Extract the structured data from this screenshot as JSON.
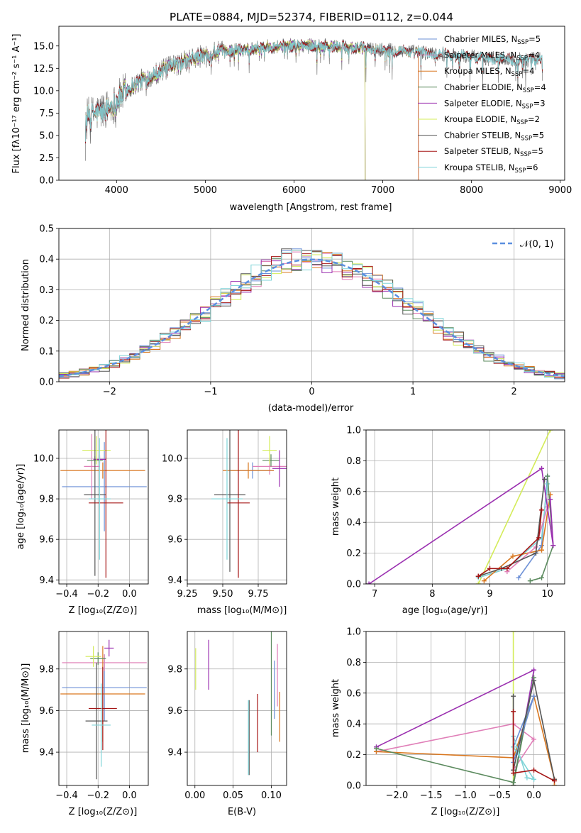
{
  "title": "PLATE=0884, MJD=52374, FIBERID=0112, z=0.044",
  "colors": {
    "Chabrier MILES": "#6b8fd6",
    "Salpeter MILES": "#e07fb8",
    "Kroupa MILES": "#d9771f",
    "Chabrier ELODIE": "#5b8a5e",
    "Salpeter ELODIE": "#9b30b0",
    "Kroupa ELODIE": "#d4ec5a",
    "Chabrier STELIB": "#555555",
    "Salpeter STELIB": "#a51515",
    "Kroupa STELIB": "#7fd4d8",
    "gauss": "#5b8fe0"
  },
  "chart_data": [
    {
      "id": "spectrum",
      "type": "line",
      "title": "PLATE=0884, MJD=52374, FIBERID=0112, z=0.044",
      "xlabel": "wavelength [Angstrom, rest frame]",
      "ylabel": "Flux [fλ10⁻¹⁷ erg cm⁻² s⁻¹ A⁻¹]",
      "xlim": [
        3350,
        9050
      ],
      "ylim": [
        0,
        17.2
      ],
      "xticks": [
        4000,
        5000,
        6000,
        7000,
        8000,
        9000
      ],
      "yticks": [
        0.0,
        2.5,
        5.0,
        7.5,
        10.0,
        12.5,
        15.0
      ],
      "grid": false,
      "legend_position": "top-right",
      "legend": [
        {
          "series": "Chabrier MILES",
          "text": "Chabrier MILES, N",
          "sub": "SSP",
          "suffix": "=5"
        },
        {
          "series": "Salpeter MILES",
          "text": "Salpeter MILES, N",
          "sub": "SSP",
          "suffix": "=4"
        },
        {
          "series": "Kroupa MILES",
          "text": "Kroupa MILES, N",
          "sub": "SSP",
          "suffix": "=4"
        },
        {
          "series": "Chabrier ELODIE",
          "text": "Chabrier ELODIE, N",
          "sub": "SSP",
          "suffix": "=4"
        },
        {
          "series": "Salpeter ELODIE",
          "text": "Salpeter ELODIE, N",
          "sub": "SSP",
          "suffix": "=3"
        },
        {
          "series": "Kroupa ELODIE",
          "text": "Kroupa ELODIE, N",
          "sub": "SSP",
          "suffix": "=2"
        },
        {
          "series": "Chabrier STELIB",
          "text": "Chabrier STELIB, N",
          "sub": "SSP",
          "suffix": "=5"
        },
        {
          "series": "Salpeter STELIB",
          "text": "Salpeter STELIB, N",
          "sub": "SSP",
          "suffix": "=5"
        },
        {
          "series": "Kroupa STELIB",
          "text": "Kroupa STELIB, N",
          "sub": "SSP",
          "suffix": "=6"
        }
      ],
      "continuum": {
        "x": [
          3650,
          3800,
          3950,
          4100,
          4300,
          4500,
          4700,
          4900,
          5100,
          5300,
          5500,
          5700,
          5900,
          6100,
          6300,
          6500,
          6700,
          6900,
          7100,
          7300,
          7500,
          7700,
          7900,
          8100,
          8300,
          8500,
          8700,
          8800
        ],
        "y": [
          7.0,
          7.6,
          8.3,
          10.0,
          11.3,
          12.2,
          13.0,
          13.7,
          14.2,
          14.5,
          14.7,
          14.9,
          15.0,
          15.1,
          15.0,
          14.9,
          14.8,
          14.6,
          14.5,
          14.4,
          14.2,
          14.1,
          13.9,
          13.7,
          13.6,
          13.5,
          13.5,
          13.6
        ]
      },
      "model_ranges": {
        "Chabrier MILES": [
          3650,
          7400
        ],
        "Salpeter MILES": [
          3650,
          7400
        ],
        "Kroupa MILES": [
          3650,
          7400
        ],
        "Chabrier ELODIE": [
          3900,
          6800
        ],
        "Salpeter ELODIE": [
          3900,
          6800
        ],
        "Kroupa ELODIE": [
          3900,
          6800
        ],
        "Chabrier STELIB": [
          3650,
          8800
        ],
        "Salpeter STELIB": [
          3650,
          8800
        ],
        "Kroupa STELIB": [
          3650,
          8800
        ]
      }
    },
    {
      "id": "residuals",
      "type": "histogram",
      "xlabel": "(data-model)/error",
      "ylabel": "Normed distribution",
      "xlim": [
        -2.5,
        2.5
      ],
      "ylim": [
        0,
        0.5
      ],
      "xticks": [
        -2,
        -1,
        0,
        1,
        2
      ],
      "yticks": [
        0.0,
        0.1,
        0.2,
        0.3,
        0.4,
        0.5
      ],
      "grid": true,
      "bin_width": 0.1,
      "legend_position": "top-right",
      "legend": [
        {
          "series": "gauss",
          "text": "𝒩(0, 1)"
        }
      ],
      "reference_curve": "standard normal"
    },
    {
      "id": "age-vs-Z",
      "type": "errorbar",
      "xlabel": "Z [log₁₀(Z/Z⊙)]",
      "ylabel": "age  [log₁₀(age/yr)]",
      "xlim": [
        -0.45,
        0.12
      ],
      "ylim": [
        9.38,
        10.14
      ],
      "xticks": [
        -0.4,
        -0.2,
        0.0
      ],
      "yticks": [
        9.4,
        9.6,
        9.8,
        10.0
      ],
      "grid": true,
      "points": [
        {
          "series": "Chabrier MILES",
          "x": -0.16,
          "xerr": 0.27,
          "y": 9.86,
          "yerr": 0.22
        },
        {
          "series": "Salpeter MILES",
          "x": -0.24,
          "xerr": 0.05,
          "y": 9.96,
          "yerr": 0.16
        },
        {
          "series": "Kroupa MILES",
          "x": -0.17,
          "xerr": 0.27,
          "y": 9.94,
          "yerr": 0.04
        },
        {
          "series": "Chabrier ELODIE",
          "x": -0.22,
          "xerr": 0.05,
          "y": 9.99,
          "yerr": 0.02
        },
        {
          "series": "Salpeter ELODIE",
          "x": -0.19,
          "xerr": 0.04,
          "y": 9.995,
          "yerr": 0.02
        },
        {
          "series": "Kroupa ELODIE",
          "x": -0.21,
          "xerr": 0.09,
          "y": 10.04,
          "yerr": 0.07
        },
        {
          "series": "Chabrier STELIB",
          "x": -0.22,
          "xerr": 0.07,
          "y": 9.82,
          "yerr": 0.4
        },
        {
          "series": "Salpeter STELIB",
          "x": -0.15,
          "xerr": 0.11,
          "y": 9.78,
          "yerr": 0.37
        },
        {
          "series": "Kroupa STELIB",
          "x": -0.19,
          "xerr": 0.07,
          "y": 9.8,
          "yerr": 0.3
        }
      ]
    },
    {
      "id": "age-vs-mass",
      "type": "errorbar",
      "xlabel": "mass [log₁₀(M/M⊙)]",
      "ylabel": "",
      "xlim": [
        9.25,
        9.95
      ],
      "ylim": [
        9.38,
        10.14
      ],
      "xticks": [
        9.25,
        9.5,
        9.75
      ],
      "xtick_labels": [
        "9.25",
        "9.50",
        "9.75"
      ],
      "yticks": [
        9.4,
        9.6,
        9.8,
        10.0
      ],
      "grid": true,
      "points": [
        {
          "series": "Chabrier MILES",
          "x": 9.71,
          "xerr": 0.15,
          "y": 9.94,
          "yerr": 0.04
        },
        {
          "series": "Salpeter MILES",
          "x": 9.83,
          "xerr": 0.12,
          "y": 9.96,
          "yerr": 0.04
        },
        {
          "series": "Kroupa MILES",
          "x": 9.68,
          "xerr": 0.18,
          "y": 9.94,
          "yerr": 0.04
        },
        {
          "series": "Chabrier ELODIE",
          "x": 9.84,
          "xerr": 0.06,
          "y": 9.99,
          "yerr": 0.03
        },
        {
          "series": "Salpeter ELODIE",
          "x": 9.9,
          "xerr": 0.05,
          "y": 9.95,
          "yerr": 0.09
        },
        {
          "series": "Kroupa ELODIE",
          "x": 9.83,
          "xerr": 0.05,
          "y": 10.04,
          "yerr": 0.07
        },
        {
          "series": "Chabrier STELIB",
          "x": 9.55,
          "xerr": 0.11,
          "y": 9.82,
          "yerr": 0.38
        },
        {
          "series": "Salpeter STELIB",
          "x": 9.61,
          "xerr": 0.08,
          "y": 9.78,
          "yerr": 0.37
        },
        {
          "series": "Kroupa STELIB",
          "x": 9.53,
          "xerr": 0.11,
          "y": 9.8,
          "yerr": 0.3
        }
      ]
    },
    {
      "id": "weight-vs-age",
      "type": "line",
      "xlabel": "age  [log₁₀(age/yr)]",
      "ylabel": "mass weight",
      "xlim": [
        6.85,
        10.3
      ],
      "ylim": [
        0,
        1
      ],
      "xticks": [
        7,
        8,
        9,
        10
      ],
      "yticks": [
        0.0,
        0.2,
        0.4,
        0.6,
        0.8,
        1.0
      ],
      "grid": true,
      "series": [
        {
          "series": "Kroupa ELODIE",
          "x": [
            8.8,
            10.05
          ],
          "y": [
            0.0,
            1.0
          ]
        },
        {
          "series": "Chabrier MILES",
          "x": [
            9.5,
            9.9,
            10.0
          ],
          "y": [
            0.04,
            0.25,
            0.7
          ]
        },
        {
          "series": "Kroupa STELIB",
          "x": [
            8.8,
            9.3,
            9.9,
            10.0
          ],
          "y": [
            0.04,
            0.1,
            0.3,
            0.65
          ]
        },
        {
          "series": "Kroupa MILES",
          "x": [
            8.9,
            9.4,
            9.9,
            10.05
          ],
          "y": [
            0.02,
            0.18,
            0.22,
            0.58
          ]
        },
        {
          "series": "Salpeter MILES",
          "x": [
            9.3,
            9.8,
            10.0
          ],
          "y": [
            0.08,
            0.24,
            0.5
          ]
        },
        {
          "series": "Chabrier ELODIE",
          "x": [
            9.7,
            9.9,
            10.1,
            10.0
          ],
          "y": [
            0.02,
            0.04,
            0.25,
            0.7
          ]
        },
        {
          "series": "Salpeter ELODIE",
          "x": [
            6.9,
            9.9,
            10.1,
            10.05
          ],
          "y": [
            0.0,
            0.75,
            0.25,
            0.55
          ]
        },
        {
          "series": "Chabrier STELIB",
          "x": [
            8.8,
            9.2,
            9.8,
            9.95
          ],
          "y": [
            0.05,
            0.1,
            0.2,
            0.68
          ]
        },
        {
          "series": "Salpeter STELIB",
          "x": [
            8.8,
            9.0,
            9.3,
            9.85,
            9.9
          ],
          "y": [
            0.05,
            0.1,
            0.1,
            0.3,
            0.48
          ]
        }
      ]
    },
    {
      "id": "mass-vs-Z",
      "type": "errorbar",
      "xlabel": "Z [log₁₀(Z/Z⊙)]",
      "ylabel": "mass [log₁₀(M/M⊙)]",
      "xlim": [
        -0.45,
        0.12
      ],
      "ylim": [
        9.24,
        9.98
      ],
      "xticks": [
        -0.4,
        -0.2,
        0.0
      ],
      "yticks": [
        9.4,
        9.6,
        9.8
      ],
      "grid": true,
      "points": [
        {
          "series": "Chabrier MILES",
          "x": -0.16,
          "xerr": 0.27,
          "y": 9.71,
          "yerr": 0.16
        },
        {
          "series": "Salpeter MILES",
          "x": -0.16,
          "xerr": 0.27,
          "y": 9.83,
          "yerr": 0.04
        },
        {
          "series": "Kroupa MILES",
          "x": -0.17,
          "xerr": 0.27,
          "y": 9.68,
          "yerr": 0.23
        },
        {
          "series": "Chabrier ELODIE",
          "x": -0.2,
          "xerr": 0.05,
          "y": 9.85,
          "yerr": 0.03
        },
        {
          "series": "Salpeter ELODIE",
          "x": -0.13,
          "xerr": 0.03,
          "y": 9.9,
          "yerr": 0.04
        },
        {
          "series": "Kroupa ELODIE",
          "x": -0.23,
          "xerr": 0.05,
          "y": 9.86,
          "yerr": 0.05
        },
        {
          "series": "Chabrier STELIB",
          "x": -0.21,
          "xerr": 0.07,
          "y": 9.55,
          "yerr": 0.28
        },
        {
          "series": "Salpeter STELIB",
          "x": -0.17,
          "xerr": 0.09,
          "y": 9.61,
          "yerr": 0.2
        },
        {
          "series": "Kroupa STELIB",
          "x": -0.18,
          "xerr": 0.06,
          "y": 9.53,
          "yerr": 0.2
        }
      ]
    },
    {
      "id": "mass-vs-EBV",
      "type": "errorbar",
      "xlabel": "E(B-V)",
      "ylabel": "",
      "xlim": [
        -0.01,
        0.12
      ],
      "ylim": [
        9.24,
        9.98
      ],
      "xticks": [
        0.0,
        0.05,
        0.1
      ],
      "xtick_labels": [
        "0.00",
        "0.05",
        "0.10"
      ],
      "yticks": [
        9.4,
        9.6,
        9.8
      ],
      "grid": true,
      "points": [
        {
          "series": "Chabrier MILES",
          "x": 0.104,
          "yerr": 0.14,
          "y": 9.7
        },
        {
          "series": "Salpeter MILES",
          "x": 0.108,
          "yerr": 0.15,
          "y": 9.77
        },
        {
          "series": "Kroupa MILES",
          "x": 0.111,
          "yerr": 0.12,
          "y": 9.57
        },
        {
          "series": "Chabrier ELODIE",
          "x": 0.1,
          "yerr": 0.25,
          "y": 9.73
        },
        {
          "series": "Salpeter ELODIE",
          "x": 0.018,
          "yerr": 0.12,
          "y": 9.82
        },
        {
          "series": "Kroupa ELODIE",
          "x": 0.001,
          "yerr": 0.1,
          "y": 9.8
        },
        {
          "series": "Chabrier STELIB",
          "x": 0.071,
          "yerr": 0.18,
          "y": 9.47
        },
        {
          "series": "Salpeter STELIB",
          "x": 0.082,
          "yerr": 0.14,
          "y": 9.54
        },
        {
          "series": "Kroupa STELIB",
          "x": 0.07,
          "yerr": 0.18,
          "y": 9.47
        }
      ]
    },
    {
      "id": "weight-vs-Z",
      "type": "line",
      "xlabel": "Z [log₁₀(Z/Z⊙)]",
      "ylabel": "mass weight",
      "xlim": [
        -2.45,
        0.45
      ],
      "ylim": [
        0,
        1
      ],
      "xticks": [
        -2.0,
        -1.5,
        -1.0,
        -0.5,
        0.0
      ],
      "yticks": [
        0.0,
        0.2,
        0.4,
        0.6,
        0.8,
        1.0
      ],
      "grid": true,
      "series": [
        {
          "series": "Kroupa ELODIE",
          "x": [
            -0.3,
            -0.3
          ],
          "y": [
            0.0,
            1.0
          ]
        },
        {
          "series": "Salpeter ELODIE",
          "x": [
            -2.3,
            0.0,
            -0.3
          ],
          "y": [
            0.25,
            0.75,
            0.0
          ]
        },
        {
          "series": "Salpeter MILES",
          "x": [
            -2.3,
            -0.3,
            0.0,
            -0.3
          ],
          "y": [
            0.22,
            0.4,
            0.3,
            0.1
          ]
        },
        {
          "series": "Kroupa MILES",
          "x": [
            -2.3,
            -0.3,
            0.0,
            0.3,
            0.3
          ],
          "y": [
            0.22,
            0.18,
            0.58,
            0.04,
            0.0
          ]
        },
        {
          "series": "Chabrier ELODIE",
          "x": [
            -2.3,
            -0.3,
            0.0,
            -0.3
          ],
          "y": [
            0.24,
            0.02,
            0.7,
            0.0
          ]
        },
        {
          "series": "Chabrier MILES",
          "x": [
            -0.3,
            0.0,
            -0.3
          ],
          "y": [
            0.25,
            0.58,
            0.15
          ]
        },
        {
          "series": "Kroupa STELIB",
          "x": [
            -0.3,
            -0.1,
            0.0,
            -0.3
          ],
          "y": [
            0.32,
            0.05,
            0.04,
            0.25
          ]
        },
        {
          "series": "Chabrier STELIB",
          "x": [
            -0.3,
            -0.3,
            0.0,
            0.3
          ],
          "y": [
            0.58,
            0.1,
            0.68,
            0.04
          ]
        },
        {
          "series": "Salpeter STELIB",
          "x": [
            -0.3,
            -0.3,
            0.0,
            0.3
          ],
          "y": [
            0.48,
            0.08,
            0.1,
            0.03
          ]
        }
      ]
    }
  ]
}
